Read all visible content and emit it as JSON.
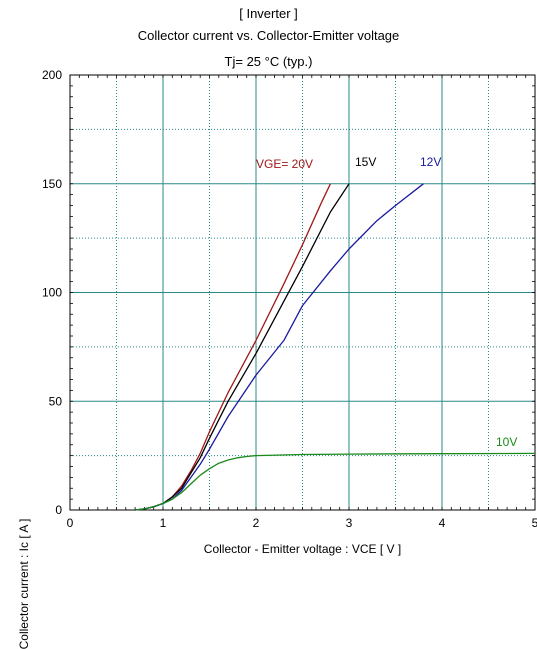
{
  "chart_data": {
    "type": "line",
    "title": "[ Inverter ]",
    "subtitle": "Collector current  vs.  Collector-Emitter voltage",
    "condition": "Tj= 25 °C  (typ.)",
    "xlabel": "Collector - Emitter voltage  :  VCE  [ V ]",
    "ylabel": "Collector current  :  Ic  [ A ]",
    "xlim": [
      0,
      5
    ],
    "ylim": [
      0,
      200
    ],
    "x_ticks": [
      "0",
      "1",
      "2",
      "3",
      "4",
      "5"
    ],
    "y_ticks": [
      "0",
      "50",
      "100",
      "150",
      "200"
    ],
    "grid": true,
    "series": [
      {
        "name": "VGE= 20V",
        "color": "#a01818",
        "points": [
          [
            0.7,
            0
          ],
          [
            0.8,
            0.5
          ],
          [
            0.9,
            1.5
          ],
          [
            1.0,
            3
          ],
          [
            1.1,
            6
          ],
          [
            1.2,
            11
          ],
          [
            1.3,
            18
          ],
          [
            1.4,
            26
          ],
          [
            1.5,
            36
          ],
          [
            1.7,
            54
          ],
          [
            2.0,
            78
          ],
          [
            2.3,
            104
          ],
          [
            2.5,
            122
          ],
          [
            2.7,
            141
          ],
          [
            2.8,
            150
          ]
        ]
      },
      {
        "name": "15V",
        "color": "#000000",
        "points": [
          [
            0.7,
            0
          ],
          [
            0.8,
            0.5
          ],
          [
            0.9,
            1.5
          ],
          [
            1.0,
            3
          ],
          [
            1.1,
            6
          ],
          [
            1.2,
            10
          ],
          [
            1.3,
            17
          ],
          [
            1.4,
            24
          ],
          [
            1.5,
            33
          ],
          [
            1.7,
            50
          ],
          [
            2.0,
            72
          ],
          [
            2.3,
            96
          ],
          [
            2.5,
            112
          ],
          [
            2.8,
            137
          ],
          [
            3.0,
            150
          ]
        ]
      },
      {
        "name": "12V",
        "color": "#1a1aa0",
        "points": [
          [
            0.7,
            0
          ],
          [
            0.8,
            0.5
          ],
          [
            0.9,
            1.5
          ],
          [
            1.0,
            3
          ],
          [
            1.1,
            5
          ],
          [
            1.2,
            9
          ],
          [
            1.3,
            15
          ],
          [
            1.4,
            21
          ],
          [
            1.5,
            28
          ],
          [
            1.7,
            43
          ],
          [
            2.0,
            62
          ],
          [
            2.3,
            78
          ],
          [
            2.5,
            94
          ],
          [
            2.8,
            110
          ],
          [
            3.0,
            120
          ],
          [
            3.3,
            133
          ],
          [
            3.5,
            140
          ],
          [
            3.8,
            150
          ]
        ]
      },
      {
        "name": "10V",
        "color": "#1a8a1a",
        "points": [
          [
            0.7,
            0
          ],
          [
            0.8,
            0.5
          ],
          [
            0.9,
            1.5
          ],
          [
            1.0,
            3
          ],
          [
            1.1,
            5
          ],
          [
            1.2,
            8
          ],
          [
            1.3,
            12
          ],
          [
            1.4,
            16
          ],
          [
            1.5,
            19
          ],
          [
            1.6,
            21.5
          ],
          [
            1.7,
            23
          ],
          [
            1.8,
            24
          ],
          [
            1.9,
            24.6
          ],
          [
            2.0,
            25
          ],
          [
            2.5,
            25.5
          ],
          [
            3.0,
            25.7
          ],
          [
            4.0,
            25.9
          ],
          [
            5.0,
            26
          ]
        ]
      }
    ],
    "labels": {
      "s20": "VGE= 20V",
      "s15": "15V",
      "s12": "12V",
      "s10": "10V"
    }
  }
}
